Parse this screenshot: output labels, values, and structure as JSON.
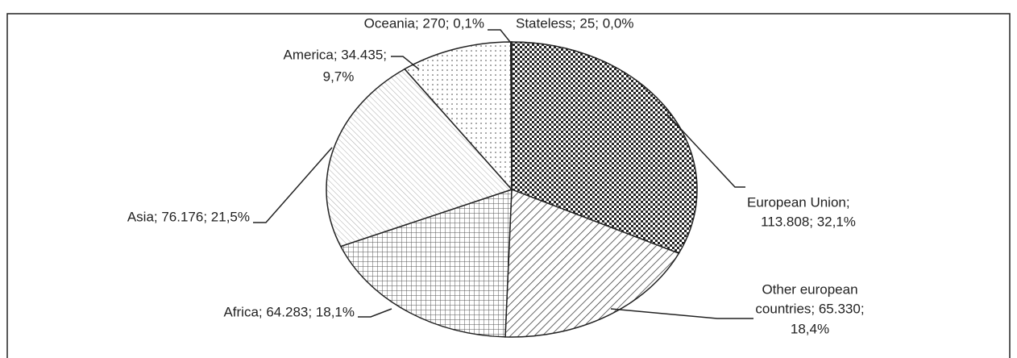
{
  "chart_data": {
    "type": "pie",
    "categories": [
      "European Union",
      "Other european countries",
      "Africa",
      "Asia",
      "America",
      "Oceania",
      "Stateless"
    ],
    "values": [
      113808,
      65330,
      64283,
      76176,
      34435,
      270,
      25
    ],
    "labels": [
      [
        "European Union;",
        "113.808; 32,1%"
      ],
      [
        "Other european",
        "countries; 65.330;",
        "18,4%"
      ],
      [
        "Africa; 64.283; 18,1%"
      ],
      [
        "Asia; 76.176; 21,5%"
      ],
      [
        "America; 34.435;",
        "9,7%"
      ],
      [
        "Oceania; 270; 0,1%"
      ],
      [
        "Stateless; 25; 0,0%"
      ]
    ],
    "patterns": [
      "checker",
      "diagonal",
      "grid",
      "fine-diagonal",
      "dots",
      "dots",
      "dots"
    ]
  }
}
